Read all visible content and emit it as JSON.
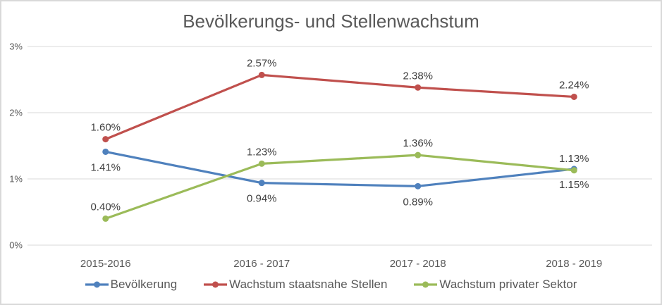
{
  "window": {
    "background_color": "#FFFFFF",
    "border_color": "#D9D9D9"
  },
  "chart_data": {
    "type": "line",
    "title": "Bevölkerungs- und Stellenwachstum",
    "categories": [
      "2015-2016",
      "2016 - 2017",
      "2017 - 2018",
      "2018 - 2019"
    ],
    "series": [
      {
        "name": "Bevölkerung",
        "color": "#4F81BD",
        "values": [
          1.41,
          0.94,
          0.89,
          1.15
        ],
        "data_labels": [
          "1.41%",
          "0.94%",
          "0.89%",
          "1.15%"
        ],
        "label_position": "below"
      },
      {
        "name": "Wachstum staatsnahe Stellen",
        "color": "#C0504D",
        "values": [
          1.6,
          2.57,
          2.38,
          2.24
        ],
        "data_labels": [
          "1.60%",
          "2.57%",
          "2.38%",
          "2.24%"
        ],
        "label_position": "above"
      },
      {
        "name": "Wachstum privater Sektor",
        "color": "#9BBB59",
        "values": [
          0.4,
          1.23,
          1.36,
          1.13
        ],
        "data_labels": [
          "0.40%",
          "1.23%",
          "1.36%",
          "1.13%"
        ],
        "label_position": "above"
      }
    ],
    "y_axis": {
      "ticks": [
        "0%",
        "1%",
        "2%",
        "3%"
      ],
      "min": 0,
      "max": 3
    },
    "xlabel": "",
    "ylabel": "",
    "grid": true,
    "legend_position": "bottom",
    "styles": {
      "grid_color": "#D9D9D9",
      "axis_label_color": "#595959",
      "data_label_color": "#404040",
      "title_color": "#595959",
      "legend_text_color": "#595959"
    }
  }
}
